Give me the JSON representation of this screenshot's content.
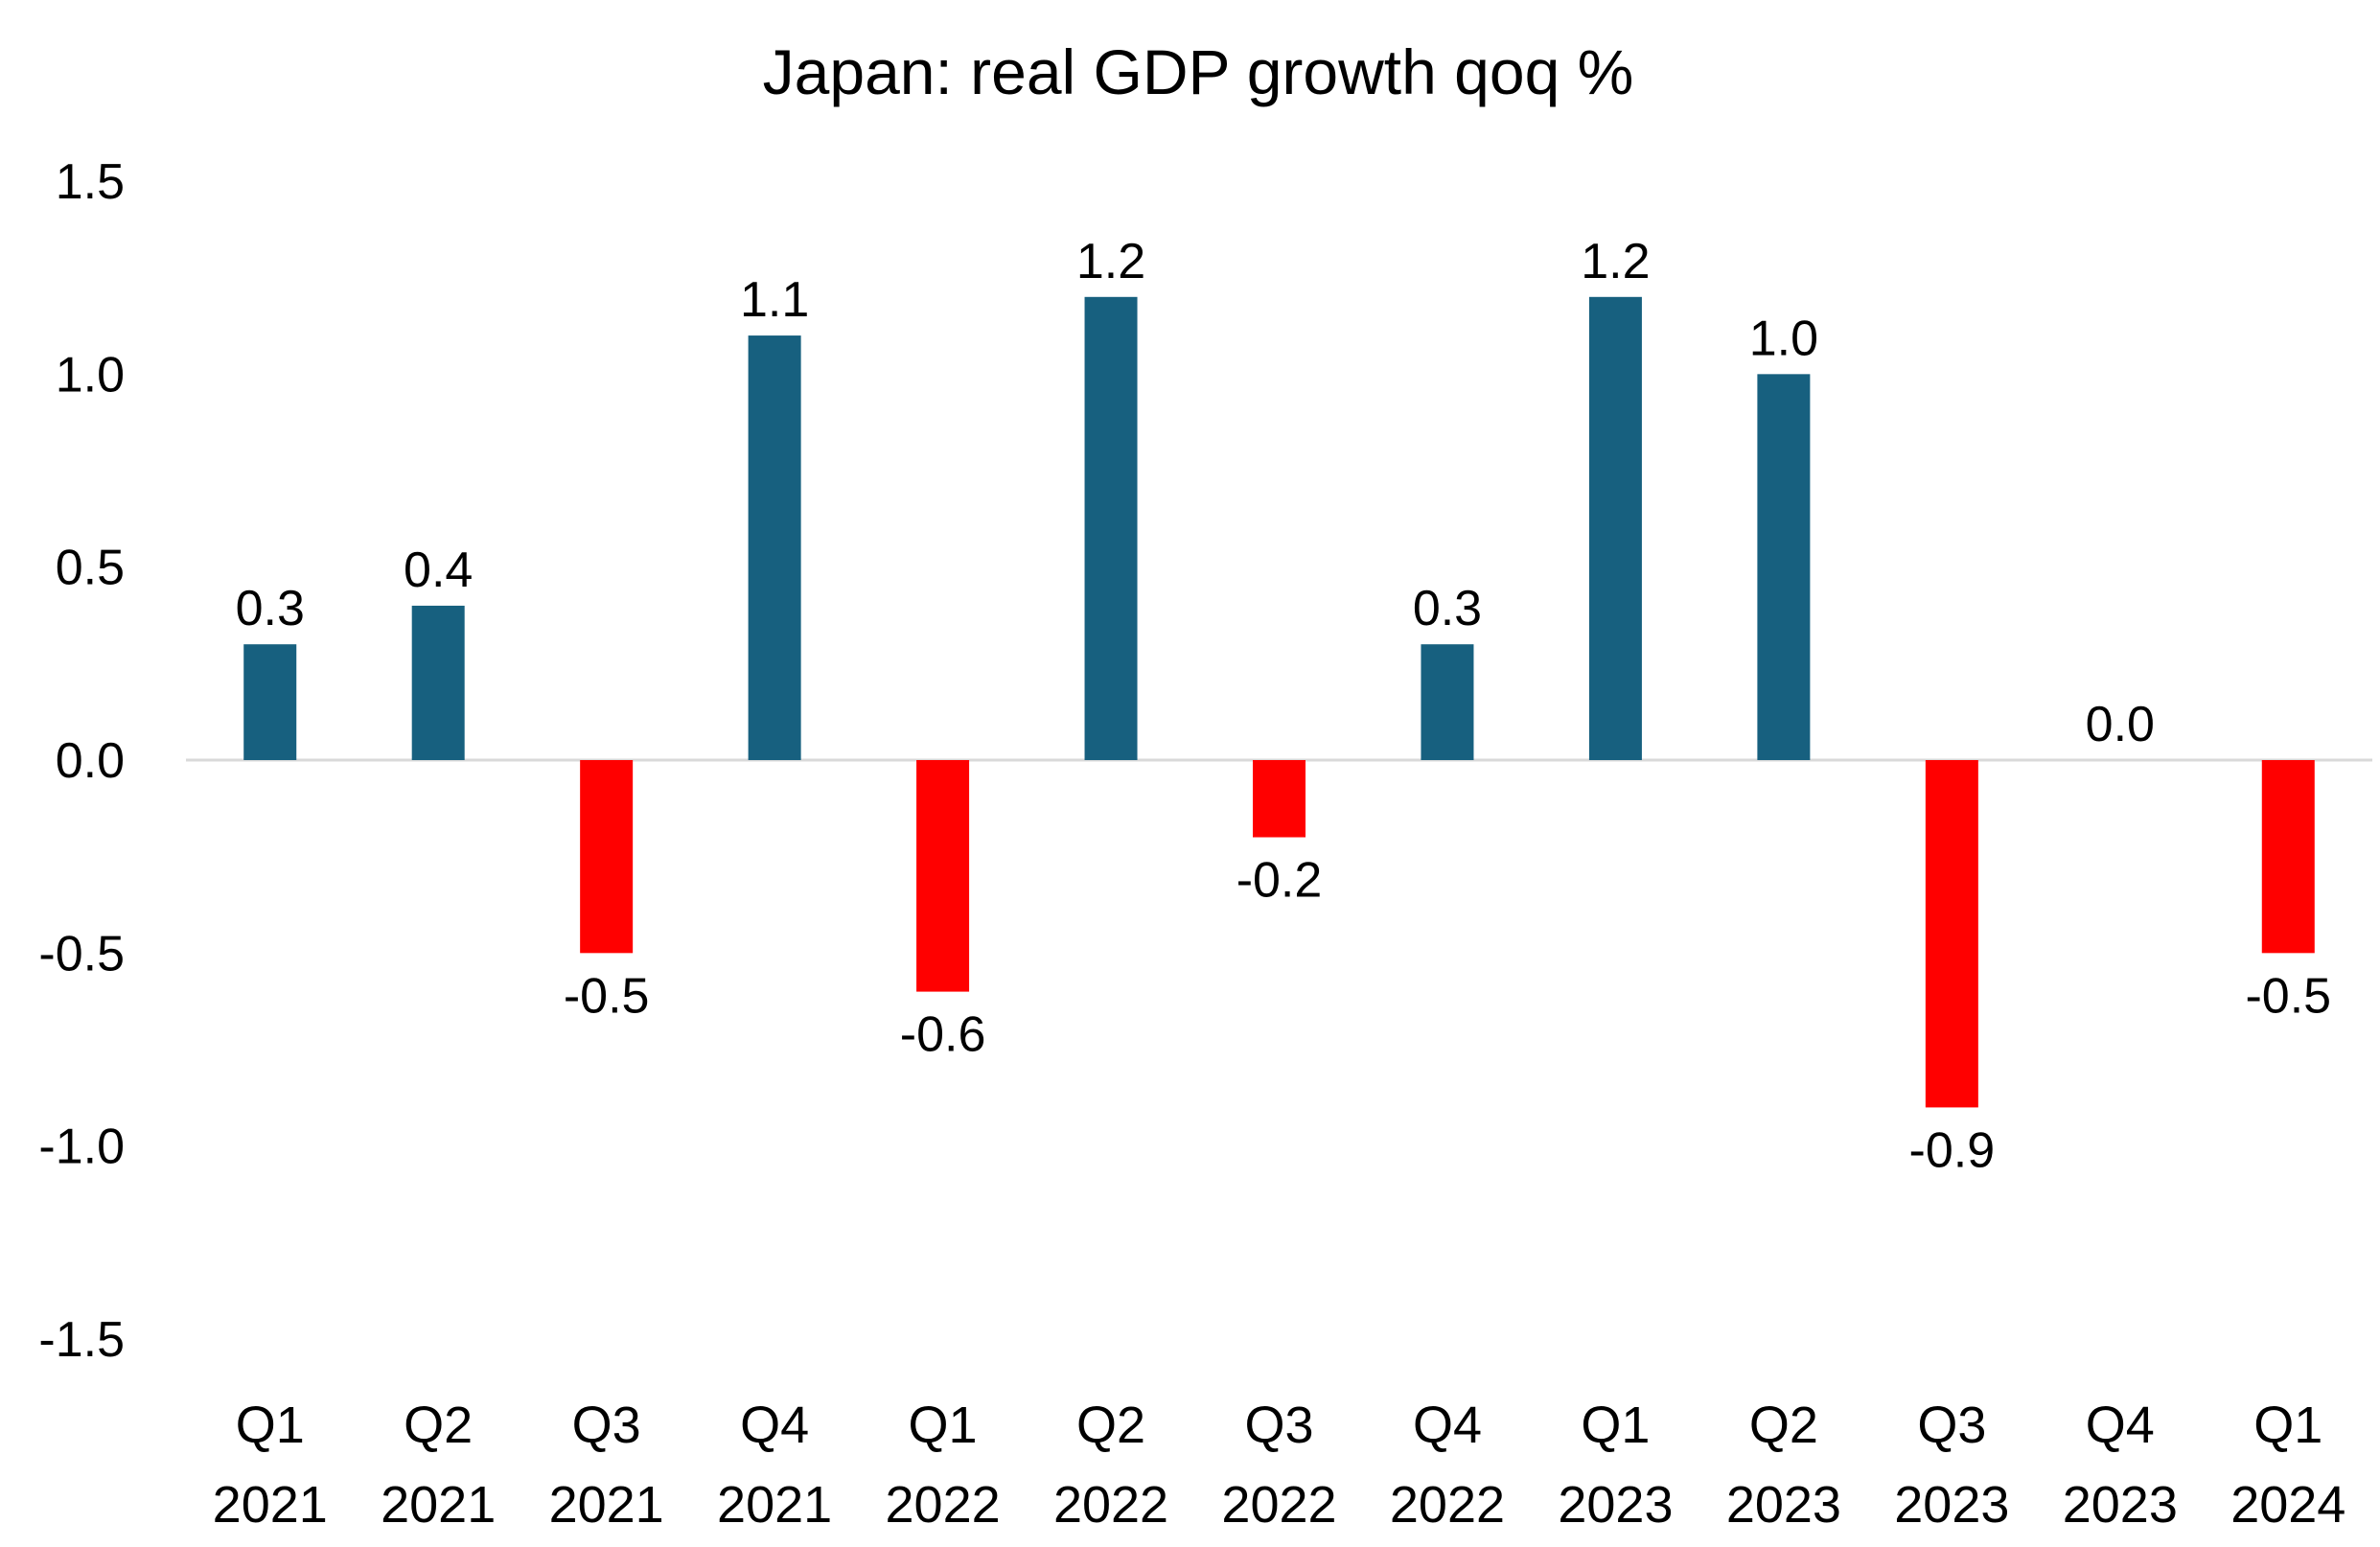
{
  "chart_data": {
    "type": "bar",
    "title": "Japan: real GDP growth qoq %",
    "xlabel": "",
    "ylabel": "",
    "categories": [
      [
        "Q1",
        "2021"
      ],
      [
        "Q2",
        "2021"
      ],
      [
        "Q3",
        "2021"
      ],
      [
        "Q4",
        "2021"
      ],
      [
        "Q1",
        "2022"
      ],
      [
        "Q2",
        "2022"
      ],
      [
        "Q3",
        "2022"
      ],
      [
        "Q4",
        "2022"
      ],
      [
        "Q1",
        "2023"
      ],
      [
        "Q2",
        "2023"
      ],
      [
        "Q3",
        "2023"
      ],
      [
        "Q4",
        "2023"
      ],
      [
        "Q1",
        "2024"
      ]
    ],
    "values": [
      0.3,
      0.4,
      -0.5,
      1.1,
      -0.6,
      1.2,
      -0.2,
      0.3,
      1.2,
      1.0,
      -0.9,
      0.0,
      -0.5
    ],
    "data_labels": [
      "0.3",
      "0.4",
      "-0.5",
      "1.1",
      "-0.6",
      "1.2",
      "-0.2",
      "0.3",
      "1.2",
      "1.0",
      "-0.9",
      "0.0",
      "-0.5"
    ],
    "ylim": [
      -1.5,
      1.5
    ],
    "yticks": [
      "1.5",
      "1.0",
      "0.5",
      "0.0",
      "-0.5",
      "-1.0",
      "-1.5"
    ],
    "ytick_values": [
      1.5,
      1.0,
      0.5,
      0.0,
      -0.5,
      -1.0,
      -1.5
    ],
    "grid": false,
    "legend": "none",
    "colors": {
      "positive": "#17607F",
      "negative": "#FF0000",
      "zero_line": "#D9D9D9"
    }
  }
}
